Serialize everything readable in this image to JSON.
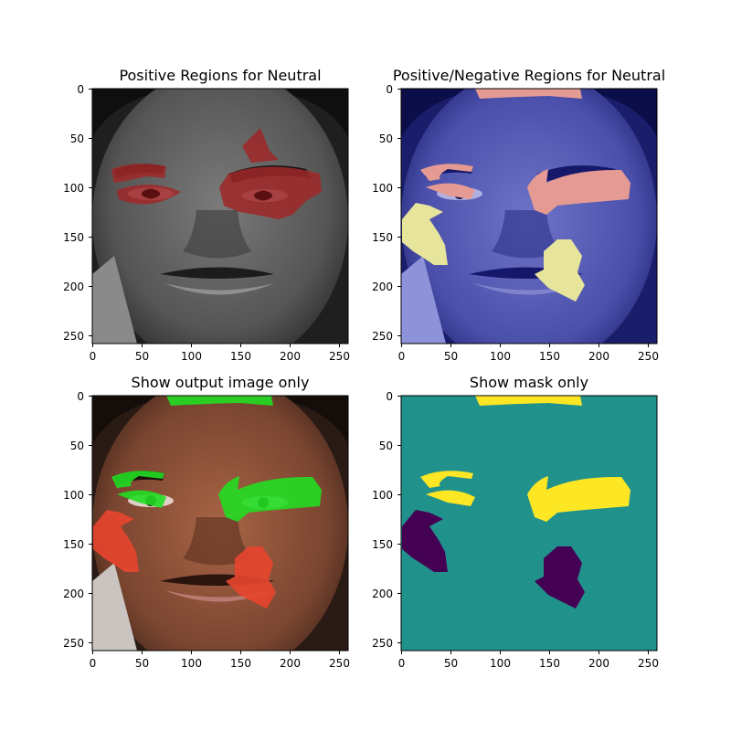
{
  "figure": {
    "panels": [
      {
        "title": "Positive Regions for Neutral",
        "xticks": [
          "0",
          "50",
          "100",
          "150",
          "200",
          "250"
        ],
        "yticks": [
          "0",
          "50",
          "100",
          "150",
          "200",
          "250"
        ],
        "image_content": "grayscale face with red-highlighted positive regions (eyes, eyebrows)"
      },
      {
        "title": "Positive/Negative Regions for Neutral",
        "xticks": [
          "0",
          "50",
          "100",
          "150",
          "200",
          "250"
        ],
        "yticks": [
          "0",
          "50",
          "100",
          "150",
          "200",
          "250"
        ],
        "image_content": "blue-tinted face with pink positive regions and yellow negative regions"
      },
      {
        "title": "Show output image only",
        "xticks": [
          "0",
          "50",
          "100",
          "150",
          "200",
          "250"
        ],
        "yticks": [
          "0",
          "50",
          "100",
          "150",
          "200",
          "250"
        ],
        "image_content": "color face with green positive regions and red negative regions"
      },
      {
        "title": "Show mask only",
        "xticks": [
          "0",
          "50",
          "100",
          "150",
          "200",
          "250"
        ],
        "yticks": [
          "0",
          "50",
          "100",
          "150",
          "200",
          "250"
        ],
        "image_content": "mask: teal background, yellow positive, dark purple negative"
      }
    ],
    "colors": {
      "mask_background": "#21918c",
      "mask_positive": "#fde725",
      "mask_negative": "#440154",
      "overlay_positive_red": "#a02828",
      "overlay_blue": "#2a2f95",
      "overlay_pink": "#e59a93",
      "overlay_yellow": "#e7e49b",
      "overlay_green": "#22dd22",
      "overlay_red": "#e8452e"
    }
  }
}
